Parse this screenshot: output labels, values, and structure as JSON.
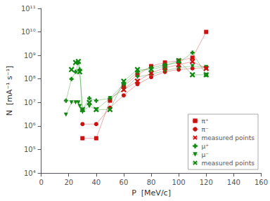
{
  "chart_data": {
    "type": "line",
    "xlabel": "P  [MeV/c]",
    "ylabel": "N  [mA⁻¹ s⁻¹]",
    "xlim": [
      0,
      160
    ],
    "xticks": [
      0,
      20,
      40,
      60,
      80,
      100,
      120,
      140,
      160
    ],
    "ylim": [
      10000,
      100000000000
    ],
    "yticks": [
      {
        "value": 10000,
        "label": "10⁴"
      },
      {
        "value": 100000,
        "label": "10⁵"
      },
      {
        "value": 1000000,
        "label": "10⁶"
      },
      {
        "value": 10000000,
        "label": "10⁷"
      },
      {
        "value": 100000000,
        "label": "10⁸"
      },
      {
        "value": 1000000000,
        "label": "10⁹"
      },
      {
        "value": 10000000000,
        "label": "10¹⁰"
      },
      {
        "value": 100000000000,
        "label": "10¹¹"
      }
    ],
    "log": "y",
    "grid": false,
    "legend": "lower right",
    "series": [
      {
        "name": "π⁺",
        "color": "#cc1111",
        "marker": "square",
        "x": [
          30,
          40,
          50,
          60,
          70,
          80,
          90,
          100,
          110,
          120
        ],
        "values": [
          300000.0,
          300000.0,
          12000000.0,
          50000000.0,
          150000000.0,
          350000000.0,
          500000000.0,
          600000000.0,
          800000000.0,
          10000000000.0
        ]
      },
      {
        "name": "π⁻",
        "color": "#cc1111",
        "marker": "circle",
        "x": [
          30,
          40,
          50,
          60,
          70,
          80,
          90,
          100,
          110,
          120
        ],
        "values": [
          1200000.0,
          1200000.0,
          6000000.0,
          20000000.0,
          60000000.0,
          120000000.0,
          200000000.0,
          250000000.0,
          280000000.0,
          300000000.0
        ]
      },
      {
        "name": "measured points",
        "color": "#cc1111",
        "marker": "x",
        "x": [
          60,
          70,
          80,
          90,
          100,
          110,
          120
        ],
        "values": [
          35000000.0,
          80000000.0,
          180000000.0,
          300000000.0,
          400000000.0,
          550000000.0,
          280000000.0
        ]
      },
      {
        "name": "μ⁺",
        "color": "#118811",
        "marker": "plus",
        "x": [
          18,
          22,
          25,
          27,
          28,
          30,
          35,
          40,
          50,
          60,
          70,
          80,
          90,
          100,
          110,
          120
        ],
        "values": [
          12000000.0,
          100000000.0,
          200000000.0,
          500000000.0,
          250000000.0,
          5000000.0,
          15000000.0,
          12000000.0,
          15000000.0,
          60000000.0,
          200000000.0,
          300000000.0,
          400000000.0,
          500000000.0,
          1300000000.0,
          150000000.0
        ]
      },
      {
        "name": "μ⁻",
        "color": "#118811",
        "marker": "triangle_down",
        "x": [
          18,
          22,
          25,
          27,
          28,
          30,
          35,
          40,
          50,
          60,
          70,
          80,
          90,
          100,
          110,
          120
        ],
        "values": [
          3000000.0,
          10000000.0,
          10000000.0,
          10000000.0,
          7000000.0,
          4000000.0,
          7000000.0,
          5000000.0,
          15000000.0,
          35000000.0,
          120000000.0,
          160000000.0,
          220000000.0,
          300000000.0,
          350000000.0,
          320000000.0
        ]
      },
      {
        "name": "measured points",
        "color": "#118811",
        "marker": "x",
        "x": [
          22,
          25,
          27,
          28,
          30,
          35,
          40,
          50,
          60,
          70,
          80,
          90,
          100,
          110,
          120
        ],
        "values": [
          250000000.0,
          500000000.0,
          550000000.0,
          200000000.0,
          5000000.0,
          10000000.0,
          5000000.0,
          5000000.0,
          80000000.0,
          250000000.0,
          250000000.0,
          350000000.0,
          600000000.0,
          150000000.0,
          150000000.0
        ]
      }
    ]
  }
}
